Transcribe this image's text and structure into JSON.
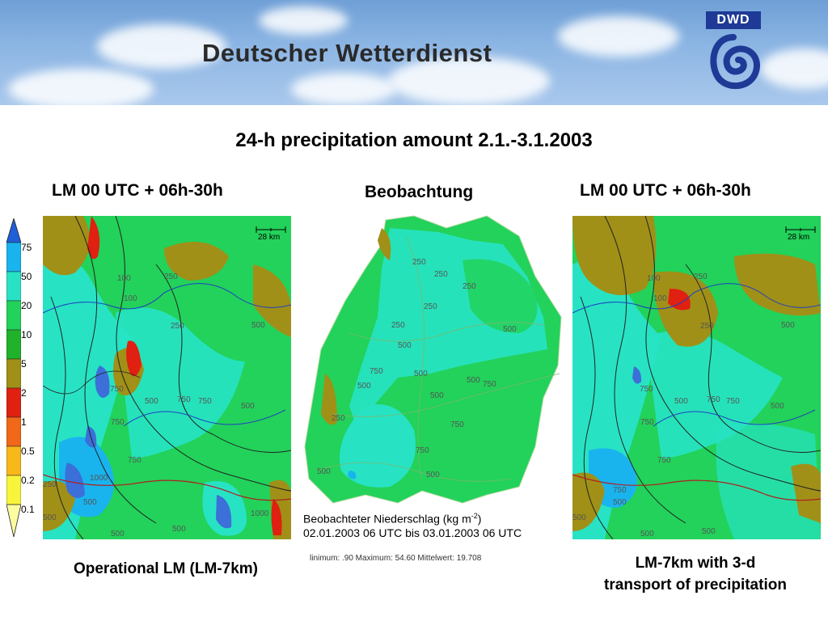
{
  "banner": {
    "title": "Deutscher Wetterdienst",
    "logo_text": "DWD",
    "logo_icon": "dwd-swirl-icon"
  },
  "headline": "24-h precipitation amount 2.1.-3.1.2003",
  "panels": {
    "left": {
      "label": "LM 00 UTC + 06h-30h",
      "caption": "Operational LM (LM-7km)",
      "scale_text": "28  km"
    },
    "center": {
      "label": "Beobachtung",
      "obs_title": "Beobachteter Niederschlag (kg m",
      "obs_unit_exp": "-2",
      "obs_title_end": ")",
      "obs_period": "02.01.2003 06 UTC bis 03.01.2003 06 UTC",
      "obs_stats": "linimum: .90  Maximum: 54.60  Mittelwert: 19.708"
    },
    "right": {
      "label": "LM 00 UTC + 06h-30h",
      "caption_line1": "LM-7km with 3-d",
      "caption_line2": "transport of precipitation",
      "scale_text": "28  km"
    }
  },
  "legend": {
    "ticks": [
      "75",
      "50",
      "20",
      "10",
      "5",
      "2",
      "1",
      "0.5",
      "0.2",
      "0.1"
    ],
    "colors": [
      "#3c6fd8",
      "#19b4ee",
      "#27e3c4",
      "#22d25a",
      "#1fb22a",
      "#a09018",
      "#e02010",
      "#f06818",
      "#f8b81a",
      "#f8f43c"
    ]
  },
  "contour_labels": {
    "left": [
      "100",
      "250",
      "100",
      "250",
      "500",
      "750",
      "500",
      "750",
      "750",
      "750",
      "1000",
      "500",
      "500",
      "500",
      "750",
      "500",
      "1000",
      "250",
      "500"
    ],
    "center": [
      "250",
      "250",
      "250",
      "250",
      "250",
      "500",
      "750",
      "500",
      "500",
      "500",
      "500",
      "750",
      "750",
      "500",
      "750",
      "500",
      "500",
      "250"
    ],
    "right": [
      "100",
      "250",
      "100",
      "250",
      "500",
      "750",
      "500",
      "750",
      "750",
      "500",
      "750",
      "500",
      "500",
      "750",
      "500",
      "750",
      "500"
    ]
  },
  "colors": {
    "ocean_blue": "#6f9fd6",
    "map_green": "#22d25a",
    "map_cyan": "#27e3c4"
  }
}
